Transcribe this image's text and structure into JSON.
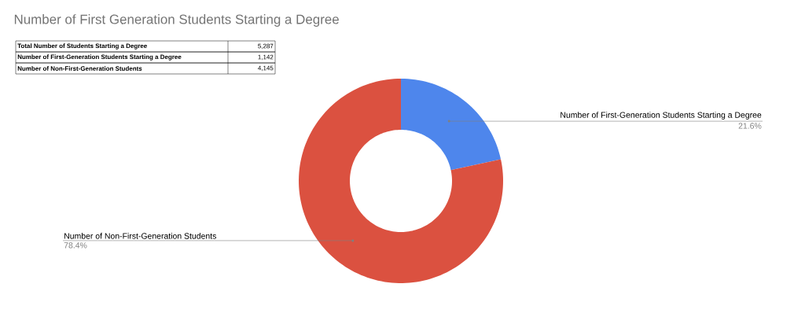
{
  "chart_data": {
    "type": "donut",
    "title": "Number of First Generation Students Starting a Degree",
    "categories": [
      "Number of First-Generation Students Starting a Degree",
      "Number of Non-First-Generation Students"
    ],
    "values": [
      21.6,
      78.4
    ],
    "colors": [
      "#4e86ec",
      "#db5140"
    ],
    "value_labels": [
      "21.6%",
      "78.4%"
    ],
    "annotations": [
      "Total Number of Students Starting a Degree",
      "5,287",
      "Number of First-Generation Students Starting a Degree",
      "1,142",
      "Number of Non-First-Generation Students",
      "4,145"
    ]
  }
}
